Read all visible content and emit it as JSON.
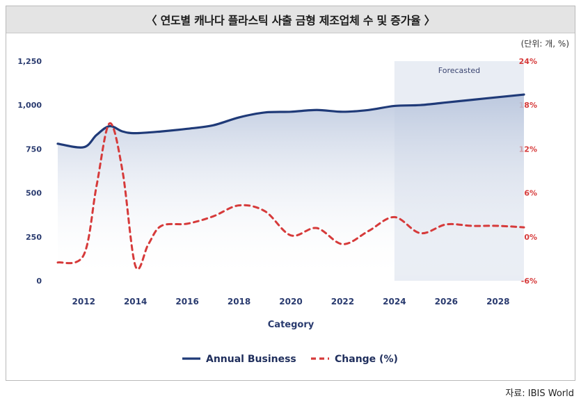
{
  "header": {
    "title": "〈 연도별 캐나다 플라스틱 사출 금형 제조업체 수 및 증가율 〉"
  },
  "unit_note": "(단위: 개, %)",
  "source": "자료: IBIS World",
  "chart_data": {
    "type": "line",
    "xlabel": "Category",
    "x_ticks": [
      "2012",
      "2014",
      "2016",
      "2018",
      "2020",
      "2022",
      "2024",
      "2026",
      "2028"
    ],
    "y_left": {
      "ticks": [
        "1,250",
        "1,000",
        "750",
        "500",
        "250",
        "0"
      ],
      "ylim": [
        0,
        1250
      ]
    },
    "y_right": {
      "ticks": [
        "24%",
        "18%",
        "12%",
        "6%",
        "0%",
        "-6%"
      ],
      "ylim": [
        -6,
        24
      ]
    },
    "forecast": {
      "label": "Forecasted",
      "start": 2024,
      "end": 2029
    },
    "x_range": [
      2011,
      2029
    ],
    "legend_position": "bottom-center",
    "series": [
      {
        "name": "Annual Business",
        "axis": "left",
        "color": "#1f3a78",
        "style": "solid",
        "area_fill": true,
        "points": [
          [
            2011,
            780
          ],
          [
            2012,
            760
          ],
          [
            2012.5,
            830
          ],
          [
            2013,
            880
          ],
          [
            2013.5,
            850
          ],
          [
            2014,
            840
          ],
          [
            2015,
            850
          ],
          [
            2016,
            865
          ],
          [
            2017,
            885
          ],
          [
            2018,
            930
          ],
          [
            2019,
            958
          ],
          [
            2020,
            962
          ],
          [
            2021,
            972
          ],
          [
            2022,
            962
          ],
          [
            2023,
            972
          ],
          [
            2024,
            995
          ],
          [
            2025,
            1000
          ],
          [
            2026,
            1015
          ],
          [
            2027,
            1030
          ],
          [
            2028,
            1045
          ],
          [
            2029,
            1060
          ]
        ]
      },
      {
        "name": "Change (%)",
        "axis": "right",
        "color": "#d63a3a",
        "style": "dashed",
        "area_fill": false,
        "points": [
          [
            2011,
            -3.5
          ],
          [
            2012,
            -2.5
          ],
          [
            2012.5,
            7
          ],
          [
            2013,
            15.5
          ],
          [
            2013.5,
            9
          ],
          [
            2014,
            -4
          ],
          [
            2014.5,
            -1
          ],
          [
            2015,
            1.5
          ],
          [
            2016,
            1.8
          ],
          [
            2017,
            2.8
          ],
          [
            2018,
            4.3
          ],
          [
            2019,
            3.5
          ],
          [
            2020,
            0.2
          ],
          [
            2021,
            1.2
          ],
          [
            2022,
            -1
          ],
          [
            2023,
            0.8
          ],
          [
            2024,
            2.7
          ],
          [
            2025,
            0.5
          ],
          [
            2026,
            1.7
          ],
          [
            2027,
            1.5
          ],
          [
            2028,
            1.5
          ],
          [
            2029,
            1.3
          ]
        ]
      }
    ]
  }
}
